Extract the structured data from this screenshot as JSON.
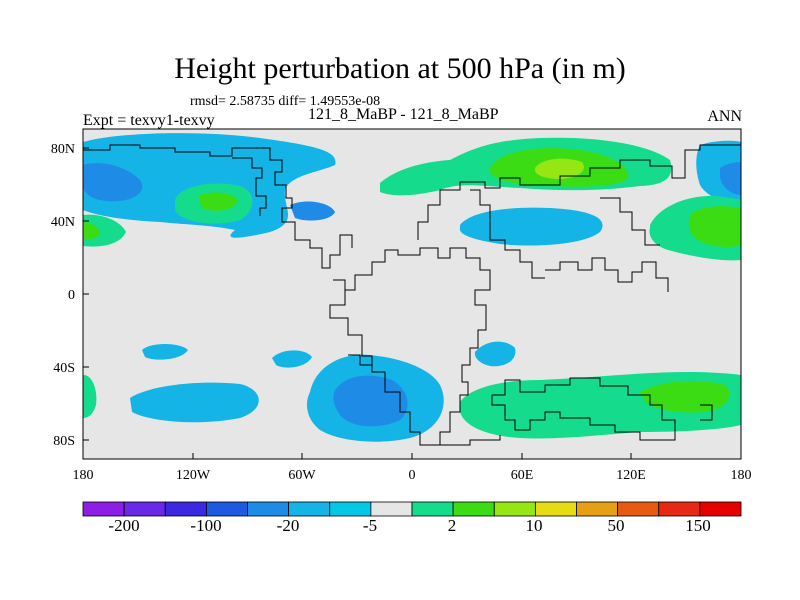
{
  "title": "Height perturbation at 500 hPa (in m)",
  "stats": "rmsd= 2.58735 diff= 1.49553e-08",
  "experiment": "Expt = texvy1-texvy",
  "cases": "121_8_MaBP - 121_8_MaBP",
  "season": "ANN",
  "x_ticks": [
    "180",
    "120W",
    "60W",
    "0",
    "60E",
    "120E",
    "180"
  ],
  "y_ticks": [
    "80N",
    "40N",
    "0",
    "40S",
    "80S"
  ],
  "colorbar": {
    "labels": [
      "-200",
      "-100",
      "-20",
      "-5",
      "2",
      "10",
      "50",
      "150"
    ],
    "colors": [
      "#8c1ee6",
      "#6a28e8",
      "#3c28e0",
      "#1e5ae0",
      "#1e8ce6",
      "#14b4e6",
      "#00c8e6",
      "#e6e6e6",
      "#14dc8c",
      "#3cdc14",
      "#96e614",
      "#e6dc14",
      "#e6a014",
      "#e65a14",
      "#e62814",
      "#e60000"
    ]
  }
}
